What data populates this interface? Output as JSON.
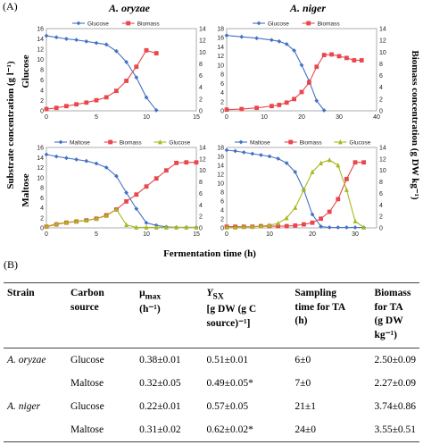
{
  "panel_a_label": "(A)",
  "panel_b_label": "(B)",
  "fig": {
    "y_left_label": "Substrate concentration (g l⁻¹)",
    "y_right_label": "Biomass concentration (g DW kg⁻¹)",
    "x_label": "Fermentation time (h)",
    "col_titles": [
      "A. oryzae",
      "A. niger"
    ],
    "row_labels": [
      "Glucose",
      "Maltose"
    ]
  },
  "colors": {
    "glucose": "#4472c4",
    "biomass": "#e8474c",
    "maltose": "#4472c4",
    "glucose_alt": "#a8b81c"
  },
  "chart_data": [
    {
      "type": "line",
      "id": "oryzae-glucose",
      "xlim": [
        0,
        15
      ],
      "xticks": [
        0,
        5,
        10,
        15
      ],
      "ylim_left": [
        0,
        16
      ],
      "yticks_left": [
        0,
        2,
        4,
        6,
        8,
        10,
        12,
        14,
        16
      ],
      "ylim_right": [
        0,
        14
      ],
      "yticks_right": [
        0,
        2,
        4,
        6,
        8,
        10,
        12,
        14
      ],
      "series": [
        {
          "name": "Glucose",
          "axis": "left",
          "color": "#4472c4",
          "marker": "diamond",
          "x": [
            0,
            1,
            2,
            3,
            4,
            5,
            6,
            7,
            8,
            9,
            10,
            11
          ],
          "y": [
            14.6,
            14.3,
            14.0,
            13.8,
            13.5,
            13.2,
            12.9,
            11.6,
            9.5,
            6.5,
            2.6,
            0.1
          ]
        },
        {
          "name": "Biomass",
          "axis": "right",
          "color": "#e8474c",
          "marker": "square",
          "x": [
            0,
            1,
            2,
            3,
            4,
            5,
            6,
            7,
            8,
            9,
            10,
            11
          ],
          "y": [
            0.3,
            0.5,
            0.8,
            1.1,
            1.4,
            1.8,
            2.3,
            3.4,
            5.1,
            7.5,
            10.3,
            9.8
          ]
        }
      ]
    },
    {
      "type": "line",
      "id": "niger-glucose",
      "xlim": [
        0,
        40
      ],
      "xticks": [
        0,
        10,
        20,
        30,
        40
      ],
      "ylim_left": [
        0,
        18
      ],
      "yticks_left": [
        0,
        2,
        4,
        6,
        8,
        10,
        12,
        14,
        16,
        18
      ],
      "ylim_right": [
        0,
        14
      ],
      "yticks_right": [
        0,
        2,
        4,
        6,
        8,
        10,
        12,
        14
      ],
      "series": [
        {
          "name": "Glucose",
          "axis": "left",
          "color": "#4472c4",
          "marker": "diamond",
          "x": [
            0,
            4,
            8,
            12,
            14,
            16,
            18,
            20,
            22,
            24,
            26
          ],
          "y": [
            16.5,
            16.2,
            15.9,
            15.5,
            15.2,
            14.6,
            13.2,
            10.0,
            6.5,
            2.2,
            0.1
          ]
        },
        {
          "name": "Biomass",
          "axis": "right",
          "color": "#e8474c",
          "marker": "square",
          "x": [
            0,
            4,
            8,
            12,
            14,
            16,
            18,
            20,
            22,
            24,
            26,
            28,
            30,
            32,
            34,
            36
          ],
          "y": [
            0.2,
            0.3,
            0.5,
            0.8,
            1.0,
            1.4,
            2.0,
            3.2,
            4.8,
            7.5,
            9.5,
            9.6,
            9.3,
            9.0,
            8.6,
            8.6
          ]
        }
      ]
    },
    {
      "type": "line",
      "id": "oryzae-maltose",
      "xlim": [
        0,
        15
      ],
      "xticks": [
        0,
        5,
        10,
        15
      ],
      "ylim_left": [
        0,
        16
      ],
      "yticks_left": [
        0,
        2,
        4,
        6,
        8,
        10,
        12,
        14,
        16
      ],
      "ylim_right": [
        0,
        14
      ],
      "yticks_right": [
        0,
        2,
        4,
        6,
        8,
        10,
        12,
        14
      ],
      "series": [
        {
          "name": "Maltose",
          "axis": "left",
          "color": "#4472c4",
          "marker": "diamond",
          "x": [
            0,
            1,
            2,
            3,
            4,
            5,
            6,
            7,
            8,
            9,
            10,
            11,
            12,
            13,
            14,
            15
          ],
          "y": [
            14.6,
            14.2,
            13.9,
            13.6,
            13.3,
            12.8,
            12.0,
            10.3,
            7.0,
            3.8,
            1.0,
            0.5,
            0.2,
            0.1,
            0.1,
            0.1
          ]
        },
        {
          "name": "Biomass",
          "axis": "right",
          "color": "#e8474c",
          "marker": "square",
          "x": [
            0,
            1,
            2,
            3,
            4,
            5,
            6,
            7,
            8,
            9,
            10,
            11,
            12,
            13,
            14,
            15
          ],
          "y": [
            0.2,
            0.6,
            0.9,
            1.1,
            1.3,
            1.6,
            2.2,
            3.2,
            4.6,
            5.8,
            7.2,
            8.6,
            10.0,
            11.3,
            11.4,
            11.4
          ]
        },
        {
          "name": "Glucose",
          "axis": "left",
          "color": "#a8b81c",
          "marker": "triangle",
          "x": [
            0,
            1,
            2,
            3,
            4,
            5,
            6,
            7,
            8,
            9,
            10,
            11,
            12,
            13,
            14,
            15
          ],
          "y": [
            0.3,
            0.8,
            1.1,
            1.3,
            1.5,
            1.8,
            2.4,
            3.7,
            0.6,
            0.1,
            0.1,
            0.1,
            0.1,
            0.1,
            0.1,
            0.1
          ]
        }
      ]
    },
    {
      "type": "line",
      "id": "niger-maltose",
      "xlim": [
        0,
        35
      ],
      "xticks": [
        0,
        10,
        20,
        30
      ],
      "ylim_left": [
        0,
        18
      ],
      "yticks_left": [
        0,
        2,
        4,
        6,
        8,
        10,
        12,
        14,
        16,
        18
      ],
      "ylim_right": [
        0,
        14
      ],
      "yticks_right": [
        0,
        2,
        4,
        6,
        8,
        10,
        12,
        14
      ],
      "series": [
        {
          "name": "Maltose",
          "axis": "left",
          "color": "#4472c4",
          "marker": "diamond",
          "x": [
            0,
            2,
            4,
            6,
            8,
            10,
            12,
            14,
            16,
            18,
            20,
            22,
            24,
            26,
            28,
            30,
            32
          ],
          "y": [
            17.4,
            17.2,
            16.9,
            16.6,
            16.3,
            16.0,
            15.5,
            14.5,
            12.5,
            8.5,
            3.0,
            0.3,
            0.1,
            0.1,
            0.1,
            0.1,
            0.1
          ]
        },
        {
          "name": "Biomass",
          "axis": "right",
          "color": "#e8474c",
          "marker": "square",
          "x": [
            0,
            2,
            4,
            6,
            8,
            10,
            12,
            14,
            16,
            18,
            20,
            22,
            24,
            26,
            28,
            30,
            32
          ],
          "y": [
            0.2,
            0.2,
            0.2,
            0.2,
            0.3,
            0.3,
            0.3,
            0.3,
            0.4,
            0.6,
            0.9,
            1.6,
            2.8,
            5.0,
            8.5,
            11.4,
            11.4
          ]
        },
        {
          "name": "Glucose",
          "axis": "left",
          "color": "#a8b81c",
          "marker": "triangle",
          "x": [
            0,
            2,
            4,
            6,
            8,
            10,
            12,
            14,
            16,
            18,
            20,
            22,
            24,
            26,
            28,
            30,
            32
          ],
          "y": [
            0.1,
            0.1,
            0.2,
            0.3,
            0.4,
            0.6,
            1.0,
            2.2,
            4.5,
            8.5,
            12.5,
            14.5,
            15.2,
            14.0,
            8.5,
            1.5,
            0.1
          ]
        }
      ]
    }
  ],
  "table": {
    "headers": {
      "strain": "Strain",
      "carbon": [
        "Carbon",
        "source"
      ],
      "mu": [
        "μ",
        "max",
        "(h⁻¹)"
      ],
      "ysx": [
        "Y",
        "SX",
        "[g DW (g C",
        "source)⁻¹]"
      ],
      "sampling": [
        "Sampling",
        "time for TA",
        "(h)"
      ],
      "biomass": [
        "Biomass",
        "for   TA",
        "(g DW kg⁻¹)"
      ]
    },
    "rows": [
      {
        "strain": "A. oryzae",
        "carbon": "Glucose",
        "mu": "0.38±0.01",
        "ysx": "0.51±0.01",
        "sampling": "6±0",
        "biomass": "2.50±0.09"
      },
      {
        "strain": "",
        "carbon": "Maltose",
        "mu": "0.32±0.05",
        "ysx": "0.49±0.05*",
        "sampling": "7±0",
        "biomass": "2.27±0.09"
      },
      {
        "strain": "A. niger",
        "carbon": "Glucose",
        "mu": "0.22±0.01",
        "ysx": "0.57±0.05",
        "sampling": "21±1",
        "biomass": "3.74±0.86"
      },
      {
        "strain": "",
        "carbon": "Maltose",
        "mu": "0.31±0.02",
        "ysx": "0.62±0.02*",
        "sampling": "24±0",
        "biomass": "3.55±0.51"
      }
    ]
  }
}
